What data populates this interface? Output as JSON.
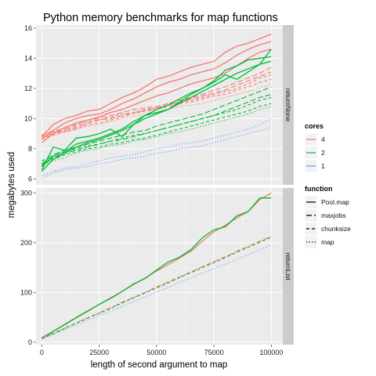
{
  "chart_data": {
    "type": "line",
    "title": "Python memory benchmarks for map functions",
    "xlabel": "length of second argument to map",
    "ylabel": "megabytes used",
    "x": [
      0,
      5000,
      10000,
      15000,
      20000,
      25000,
      30000,
      35000,
      40000,
      45000,
      50000,
      55000,
      60000,
      65000,
      70000,
      75000,
      80000,
      85000,
      90000,
      95000,
      100000
    ],
    "xlim": [
      -2500,
      105000
    ],
    "xticks": [
      0,
      25000,
      50000,
      75000,
      100000
    ],
    "xtick_labels": [
      "0",
      "25000",
      "50000",
      "75000",
      "100000"
    ],
    "grid": true,
    "panels": [
      {
        "strip_label": "returnNone",
        "ylim": [
          5.6,
          16.2
        ],
        "yticks": [
          6,
          8,
          10,
          12,
          14,
          16
        ],
        "ytick_labels": [
          "6",
          "8",
          "10",
          "12",
          "14",
          "16"
        ],
        "series": [
          {
            "cores": "4",
            "function": "Pool.map",
            "values": [
              8.8,
              9.6,
              10.0,
              10.2,
              10.5,
              10.6,
              11.0,
              11.4,
              11.7,
              12.1,
              12.6,
              12.8,
              13.1,
              13.4,
              13.6,
              13.8,
              14.4,
              14.8,
              15.0,
              15.3,
              15.6
            ]
          },
          {
            "cores": "4",
            "function": "Pool.map",
            "values": [
              8.6,
              9.2,
              9.7,
              10.0,
              10.2,
              10.3,
              10.6,
              11.0,
              11.3,
              11.7,
              12.1,
              12.4,
              12.6,
              12.9,
              13.1,
              13.3,
              13.7,
              14.2,
              14.6,
              14.9,
              15.1
            ]
          },
          {
            "cores": "4",
            "function": "Pool.map",
            "values": [
              8.4,
              9.0,
              9.4,
              9.7,
              9.9,
              10.1,
              10.4,
              10.6,
              10.9,
              11.2,
              11.5,
              11.7,
              12.0,
              12.3,
              12.5,
              12.7,
              13.0,
              13.5,
              14.0,
              14.4,
              14.6
            ]
          },
          {
            "cores": "4",
            "function": "maxjobs",
            "values": [
              8.9,
              9.2,
              9.3,
              9.6,
              9.9,
              10.0,
              10.2,
              10.4,
              10.6,
              10.7,
              10.8,
              11.0,
              11.2,
              11.4,
              11.6,
              11.9,
              12.1,
              12.4,
              12.7,
              13.0,
              13.4
            ]
          },
          {
            "cores": "4",
            "function": "maxjobs",
            "values": [
              8.8,
              9.0,
              9.2,
              9.4,
              9.7,
              9.9,
              10.0,
              10.2,
              10.4,
              10.5,
              10.7,
              10.9,
              11.1,
              11.3,
              11.5,
              11.7,
              11.9,
              12.2,
              12.5,
              12.8,
              13.1
            ]
          },
          {
            "cores": "4",
            "function": "chunksize",
            "values": [
              8.9,
              9.1,
              9.2,
              9.5,
              9.8,
              9.9,
              10.1,
              10.3,
              10.4,
              10.6,
              10.7,
              10.9,
              11.1,
              11.2,
              11.4,
              11.6,
              11.8,
              12.0,
              12.3,
              12.7,
              12.9
            ]
          },
          {
            "cores": "4",
            "function": "chunksize",
            "values": [
              8.7,
              8.9,
              9.1,
              9.3,
              9.6,
              9.7,
              9.9,
              10.1,
              10.3,
              10.5,
              10.6,
              10.8,
              11.0,
              11.1,
              11.3,
              11.5,
              11.6,
              11.9,
              12.1,
              12.4,
              12.6
            ]
          },
          {
            "cores": "4",
            "function": "map",
            "values": [
              8.8,
              8.9,
              9.1,
              9.3,
              9.5,
              9.6,
              9.8,
              10.0,
              10.1,
              10.3,
              10.4,
              10.6,
              10.8,
              10.9,
              11.0,
              11.2,
              11.4,
              11.6,
              11.8,
              12.0,
              12.3
            ]
          },
          {
            "cores": "2",
            "function": "Pool.map",
            "values": [
              6.6,
              8.1,
              7.9,
              8.7,
              8.8,
              9.0,
              9.3,
              8.8,
              9.6,
              10.2,
              10.4,
              10.6,
              11.1,
              11.6,
              12.0,
              12.4,
              12.9,
              12.6,
              13.1,
              13.6,
              14.6
            ]
          },
          {
            "cores": "2",
            "function": "Pool.map",
            "values": [
              6.8,
              7.5,
              7.8,
              8.3,
              8.5,
              8.7,
              9.0,
              9.3,
              9.8,
              10.2,
              10.6,
              10.9,
              11.3,
              11.7,
              12.0,
              12.5,
              13.2,
              13.5,
              13.9,
              14.0,
              14.1
            ]
          },
          {
            "cores": "2",
            "function": "Pool.map",
            "values": [
              6.5,
              7.3,
              7.7,
              8.1,
              8.4,
              8.6,
              8.9,
              9.2,
              9.6,
              10.0,
              10.3,
              10.6,
              11.0,
              11.4,
              11.8,
              12.2,
              12.6,
              13.0,
              13.3,
              13.6,
              13.8
            ]
          },
          {
            "cores": "2",
            "function": "maxjobs",
            "values": [
              7.0,
              7.6,
              7.9,
              8.1,
              8.3,
              8.5,
              8.7,
              8.9,
              9.1,
              9.2,
              9.5,
              9.7,
              9.9,
              10.1,
              10.3,
              10.6,
              10.9,
              11.2,
              11.5,
              11.8,
              12.1
            ]
          },
          {
            "cores": "2",
            "function": "maxjobs",
            "values": [
              6.9,
              7.4,
              7.7,
              7.9,
              8.1,
              8.3,
              8.5,
              8.6,
              8.8,
              9.0,
              9.2,
              9.4,
              9.6,
              9.8,
              10.0,
              10.2,
              10.5,
              10.8,
              11.1,
              11.4,
              11.6
            ]
          },
          {
            "cores": "2",
            "function": "chunksize",
            "values": [
              7.2,
              7.5,
              7.8,
              8.0,
              8.2,
              8.3,
              8.5,
              8.7,
              8.9,
              9.0,
              9.2,
              9.4,
              9.6,
              9.8,
              10.0,
              10.2,
              10.4,
              10.6,
              10.9,
              11.2,
              11.4
            ]
          },
          {
            "cores": "2",
            "function": "chunksize",
            "values": [
              7.0,
              7.3,
              7.6,
              7.8,
              8.0,
              8.1,
              8.3,
              8.4,
              8.6,
              8.7,
              8.9,
              9.1,
              9.3,
              9.5,
              9.7,
              9.9,
              10.1,
              10.3,
              10.5,
              10.8,
              11.0
            ]
          },
          {
            "cores": "2",
            "function": "map",
            "values": [
              6.9,
              7.2,
              7.4,
              7.7,
              7.9,
              8.0,
              8.2,
              8.3,
              8.5,
              8.6,
              8.8,
              9.0,
              9.1,
              9.3,
              9.5,
              9.7,
              9.9,
              10.1,
              10.3,
              10.6,
              10.8
            ]
          },
          {
            "cores": "1",
            "function": "map",
            "values": [
              6.2,
              6.5,
              6.7,
              6.8,
              7.0,
              7.2,
              7.4,
              7.5,
              7.6,
              7.8,
              8.0,
              8.1,
              8.3,
              8.4,
              8.5,
              8.7,
              8.9,
              9.1,
              9.3,
              9.6,
              10.0
            ]
          },
          {
            "cores": "1",
            "function": "map",
            "values": [
              6.0,
              6.4,
              6.6,
              6.7,
              6.8,
              7.0,
              7.1,
              7.3,
              7.4,
              7.5,
              7.7,
              7.8,
              8.0,
              8.1,
              8.2,
              8.4,
              8.6,
              8.8,
              9.0,
              9.2,
              9.4
            ]
          }
        ]
      },
      {
        "strip_label": "returnList",
        "ylim": [
          -5,
          310
        ],
        "yticks": [
          0,
          100,
          200,
          300
        ],
        "ytick_labels": [
          "0",
          "100",
          "200",
          "300"
        ],
        "series": [
          {
            "cores": "4",
            "function": "Pool.map",
            "values": [
              9,
              22,
              36,
              50,
              63,
              76,
              89,
              102,
              116,
              129,
              143,
              156,
              169,
              183,
              203,
              222,
              235,
              250,
              263,
              287,
              300
            ]
          },
          {
            "cores": "2",
            "function": "Pool.map",
            "values": [
              8,
              22,
              35,
              49,
              62,
              76,
              88,
              102,
              117,
              128,
              145,
              161,
              171,
              186,
              210,
              226,
              232,
              254,
              263,
              290,
              290
            ]
          },
          {
            "cores": "4",
            "function": "maxjobs",
            "values": [
              8,
              18,
              28,
              39,
              49,
              59,
              69,
              80,
              90,
              100,
              111,
              121,
              131,
              141,
              152,
              162,
              172,
              183,
              193,
              203,
              213
            ]
          },
          {
            "cores": "2",
            "function": "chunksize",
            "values": [
              7,
              17,
              28,
              38,
              48,
              58,
              68,
              79,
              89,
              99,
              109,
              119,
              130,
              140,
              150,
              160,
              170,
              181,
              191,
              201,
              211
            ]
          },
          {
            "cores": "1",
            "function": "map",
            "values": [
              6,
              15,
              25,
              34,
              44,
              53,
              63,
              72,
              82,
              91,
              101,
              110,
              120,
              129,
              139,
              148,
              157,
              167,
              176,
              186,
              196
            ]
          }
        ]
      }
    ],
    "legends": [
      {
        "title": "cores",
        "entries": [
          {
            "label": "4",
            "color": "#f8766d"
          },
          {
            "label": "2",
            "color": "#00ba38"
          },
          {
            "label": "1",
            "color": "#619cff"
          }
        ]
      },
      {
        "title": "function",
        "entries": [
          {
            "label": "Pool.map",
            "dash": "solid"
          },
          {
            "label": "maxjobs",
            "dash": "longdash"
          },
          {
            "label": "chunksize",
            "dash": "dashed"
          },
          {
            "label": "map",
            "dash": "dotted"
          }
        ]
      }
    ],
    "legend_position": "right",
    "colors": {
      "4": "#f8766d",
      "2": "#00ba38",
      "1": "#619cff"
    }
  }
}
